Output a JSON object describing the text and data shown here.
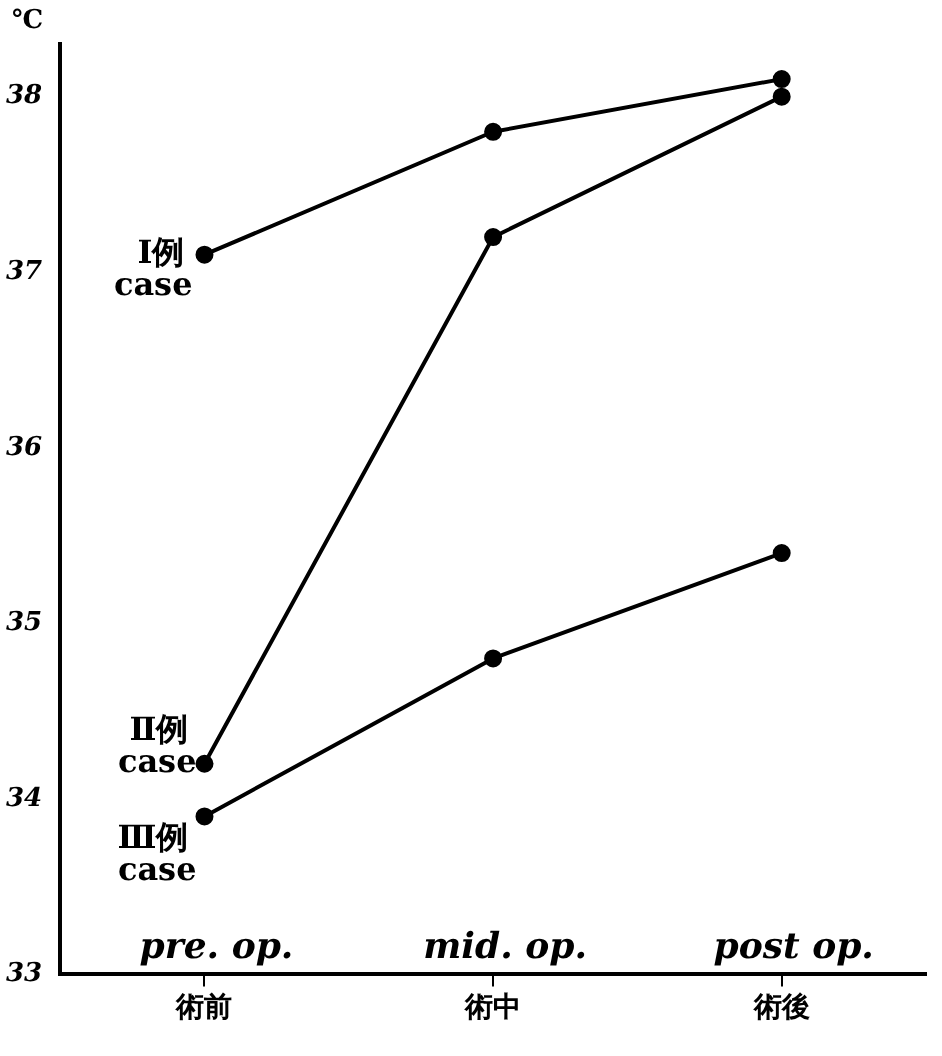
{
  "chart_data": {
    "type": "line",
    "ylabel": "℃",
    "categories": [
      "術前",
      "術中",
      "術後"
    ],
    "series": [
      {
        "name": "Ⅰ例 case",
        "color": "#000000",
        "values": [
          37.1,
          37.8,
          38.1
        ]
      },
      {
        "name": "Ⅱ例 case",
        "color": "#000000",
        "values": [
          34.2,
          37.2,
          38.0
        ]
      },
      {
        "name": "Ⅲ例 case",
        "color": "#000000",
        "values": [
          33.9,
          34.8,
          35.4
        ]
      }
    ],
    "annotations": [
      "pre. op.",
      "mid. op.",
      "post op."
    ],
    "ylim": [
      33,
      38.3
    ],
    "yticks": [
      33,
      34,
      35,
      36,
      37,
      38
    ],
    "grid": false,
    "legend": false,
    "marker": "circle",
    "line_style": "solid"
  }
}
